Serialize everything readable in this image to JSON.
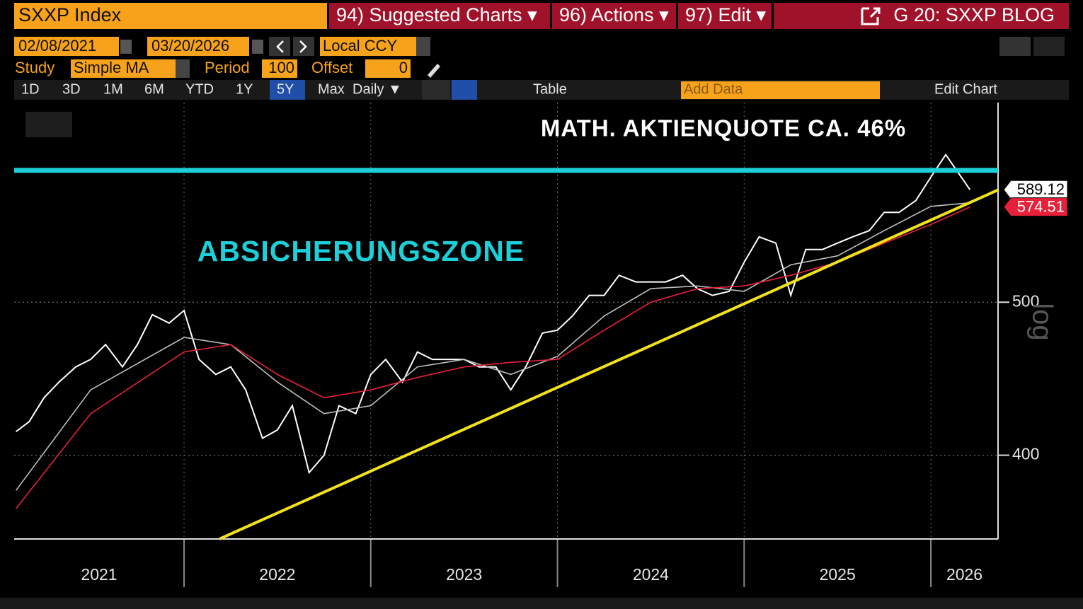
{
  "header": {
    "ticker": "SXXP Index",
    "menus": [
      "94) Suggested Charts ▾",
      "96) Actions ▾",
      "97) Edit ▾"
    ],
    "title": "G 20: SXXP BLOG"
  },
  "controls": {
    "start_date": "02/08/2021",
    "end_date": "03/20/2026",
    "currency": "Local CCY",
    "study_label": "Study",
    "study": "Simple MA",
    "period_label": "Period",
    "period": "100",
    "offset_label": "Offset",
    "offset": "0",
    "ranges": [
      "1D",
      "3D",
      "1M",
      "6M",
      "YTD",
      "1Y",
      "5Y",
      "Max"
    ],
    "active_range": "5Y",
    "frequency": "Daily ▼",
    "table": "Table",
    "add_data": "Add Data",
    "edit_chart": "Edit Chart"
  },
  "chart_data": {
    "type": "line",
    "y_scale": "log",
    "y_scale_label": "log",
    "annotations": [
      "MATH. AKTIENQUOTE CA. 46%",
      "ABSICHERUNGSZONE"
    ],
    "xlim": [
      2021.09,
      2026.36
    ],
    "xticks": [
      2022,
      2023,
      2024,
      2025,
      2026
    ],
    "year_labels": [
      "2021",
      "2022",
      "2023",
      "2024",
      "2025",
      "2026"
    ],
    "ylim": [
      354,
      669
    ],
    "yticks": [
      400,
      500
    ],
    "grid": true,
    "series": [
      {
        "color": "#ffffff",
        "x": [
          2021.1,
          2021.17,
          2021.25,
          2021.33,
          2021.42,
          2021.5,
          2021.58,
          2021.67,
          2021.75,
          2021.83,
          2021.92,
          2022.0,
          2022.08,
          2022.17,
          2022.25,
          2022.33,
          2022.42,
          2022.5,
          2022.58,
          2022.67,
          2022.75,
          2022.83,
          2022.92,
          2023.0,
          2023.08,
          2023.17,
          2023.25,
          2023.33,
          2023.42,
          2023.5,
          2023.58,
          2023.67,
          2023.75,
          2023.83,
          2023.92,
          2024.0,
          2024.08,
          2024.17,
          2024.25,
          2024.33,
          2024.42,
          2024.5,
          2024.58,
          2024.67,
          2024.75,
          2024.83,
          2024.92,
          2025.0,
          2025.08,
          2025.17,
          2025.25,
          2025.33,
          2025.42,
          2025.5,
          2025.58,
          2025.67,
          2025.75,
          2025.83,
          2025.92,
          2026.0,
          2026.08,
          2026.21
        ],
        "values": [
          414,
          420,
          435,
          445,
          455,
          460,
          470,
          455,
          470,
          491,
          485,
          494,
          460,
          450,
          455,
          440,
          410,
          415,
          430,
          390,
          400,
          430,
          425,
          450,
          460,
          445,
          465,
          460,
          460,
          460,
          455,
          455,
          440,
          455,
          478,
          480,
          490,
          505,
          505,
          520,
          515,
          515,
          515,
          520,
          510,
          505,
          508,
          530,
          550,
          545,
          505,
          540,
          540,
          545,
          550,
          555,
          570,
          570,
          580,
          600,
          620,
          589.12
        ]
      },
      {
        "color": "#bfbfbf",
        "x": [
          2021.1,
          2021.5,
          2022.0,
          2022.25,
          2022.5,
          2022.75,
          2023.0,
          2023.25,
          2023.5,
          2023.75,
          2024.0,
          2024.25,
          2024.5,
          2024.75,
          2025.0,
          2025.25,
          2025.5,
          2025.75,
          2026.0,
          2026.21
        ],
        "values": [
          380,
          440,
          475,
          470,
          445,
          425,
          430,
          455,
          460,
          450,
          462,
          490,
          510,
          512,
          508,
          528,
          535,
          555,
          575,
          578
        ]
      },
      {
        "color": "#e8203a",
        "x": [
          2021.1,
          2021.5,
          2022.0,
          2022.25,
          2022.5,
          2022.75,
          2023.0,
          2023.25,
          2023.5,
          2023.75,
          2024.0,
          2024.25,
          2024.5,
          2024.75,
          2025.0,
          2025.25,
          2025.5,
          2025.75,
          2026.0,
          2026.21
        ],
        "values": [
          370,
          425,
          465,
          470,
          450,
          435,
          440,
          448,
          455,
          458,
          460,
          480,
          500,
          510,
          512,
          520,
          530,
          545,
          560,
          574.51
        ]
      }
    ],
    "lines": [
      {
        "color": "#1ccfd8",
        "x": [
          2021.09,
          2026.36
        ],
        "values": [
          606,
          606
        ]
      },
      {
        "color": "#f2e21c",
        "x": [
          2022.19,
          2026.36
        ],
        "values": [
          354,
          589
        ]
      }
    ]
  }
}
